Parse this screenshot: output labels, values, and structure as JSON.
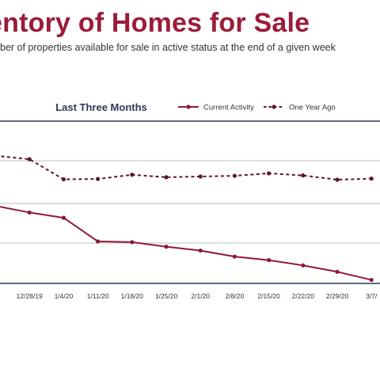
{
  "page": {
    "title": "entory of Homes for Sale",
    "subtitle": "ber of properties available for sale in active status at the end of a given week"
  },
  "chart_data": {
    "type": "line",
    "title": "Last Three Months",
    "categories": [
      "19",
      "12/28/19",
      "1/4/20",
      "1/11/20",
      "1/18/20",
      "1/25/20",
      "2/1/20",
      "2/8/20",
      "2/15/20",
      "2/22/20",
      "2/29/20",
      "3/7/"
    ],
    "series": [
      {
        "name": "Current Activity",
        "color": "#8e1a38",
        "style": "solid",
        "values": [
          220,
          201,
          186,
          119,
          117,
          104,
          93,
          76,
          66,
          51,
          33,
          10
        ]
      },
      {
        "name": "One Year Ago",
        "color": "#5e1530",
        "style": "dashed",
        "values": [
          362,
          352,
          295,
          296,
          308,
          301,
          303,
          305,
          312,
          306,
          294,
          297
        ]
      }
    ],
    "ylim": [
      0,
      460
    ],
    "grid": true,
    "legend_position": "top-right"
  },
  "colors": {
    "title": "#9b1c3a",
    "axis": "#2b3a55",
    "grid": "#bdbdbd"
  }
}
